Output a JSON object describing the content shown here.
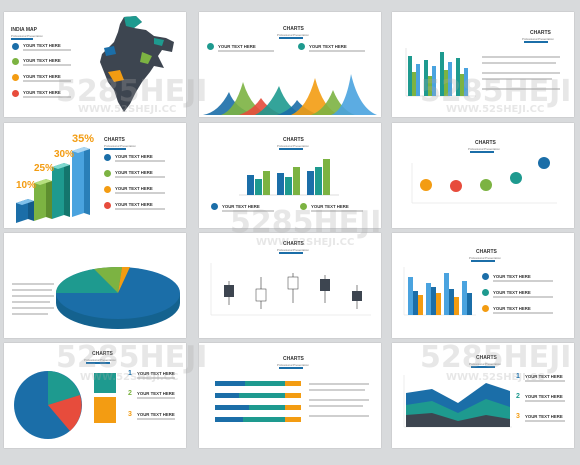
{
  "slides": {
    "s1": {
      "title": "INDIA MAP",
      "subtitle": "Professional Presentation",
      "items": [
        "YOUR TEXT HERE",
        "YOUR TEXT HERE",
        "YOUR TEXT HERE",
        "YOUR TEXT HERE"
      ]
    },
    "s2": {
      "title": "CHARTS",
      "subtitle": "Professional Presentation",
      "items": [
        "YOUR TEXT HERE",
        "YOUR TEXT HERE"
      ]
    },
    "s3": {
      "title": "CHARTS",
      "subtitle": "Professional Presentation"
    },
    "s4": {
      "title": "CHARTS",
      "subtitle": "Professional Presentation",
      "items": [
        "YOUR TEXT HERE",
        "YOUR TEXT HERE",
        "YOUR TEXT HERE",
        "YOUR TEXT HERE"
      ],
      "percents": [
        "10%",
        "25%",
        "30%",
        "35%"
      ]
    },
    "s5": {
      "title": "CHARTS",
      "subtitle": "Professional Presentation",
      "items": [
        "YOUR TEXT HERE",
        "YOUR TEXT HERE"
      ]
    },
    "s6": {
      "title": "CHARTS",
      "subtitle": "Professional Presentation"
    },
    "s7": {
      "title": "CHARTS",
      "subtitle": "Professional Presentation"
    },
    "s8": {
      "title": "CHARTS",
      "subtitle": "Professional Presentation"
    },
    "s9": {
      "title": "CHARTS",
      "subtitle": "Professional Presentation",
      "items": [
        "YOUR TEXT HERE",
        "YOUR TEXT HERE",
        "YOUR TEXT HERE"
      ]
    },
    "s10": {
      "title": "CHARTS",
      "subtitle": "Professional Presentation",
      "items": [
        "YOUR TEXT HERE",
        "YOUR TEXT HERE",
        "YOUR TEXT HERE"
      ],
      "numbers": [
        "1",
        "2",
        "3"
      ]
    },
    "s11": {
      "title": "CHARTS",
      "subtitle": "Professional Presentation"
    },
    "s12": {
      "title": "CHARTS",
      "subtitle": "Professional Presentation",
      "items": [
        "YOUR TEXT HERE",
        "YOUR TEXT HERE",
        "YOUR TEXT HERE"
      ],
      "numbers": [
        "1",
        "2",
        "3"
      ]
    }
  },
  "watermark": {
    "logo": "5285HEJI",
    "domain": "WWW.52SHEJI.CC"
  },
  "colors": {
    "teal": "#1e9a8f",
    "blue": "#1b6ea8",
    "green": "#7cb342",
    "orange": "#f39c12",
    "red": "#e74c3c",
    "dark": "#3d4550",
    "lightblue": "#4aa3df"
  }
}
